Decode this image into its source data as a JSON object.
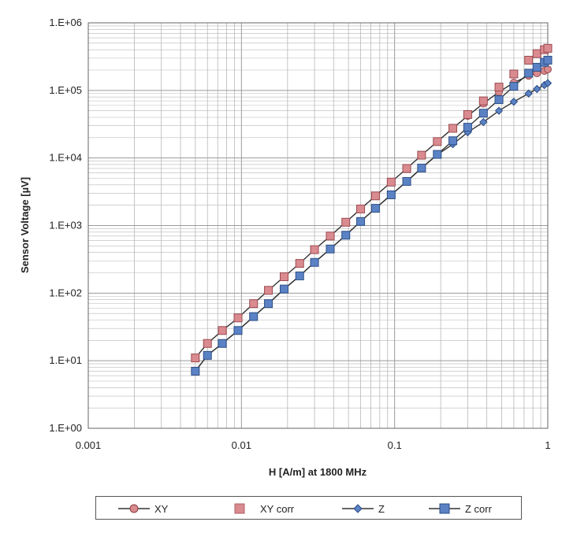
{
  "chart_data": {
    "type": "scatter",
    "xscale": "log",
    "yscale": "log",
    "xlim": [
      0.001,
      1
    ],
    "ylim": [
      1,
      1000000
    ],
    "xlabel": "H [A/m] at 1800 MHz",
    "ylabel": "Sensor Voltage [µV]",
    "xtick_labels": [
      "0.001",
      "0.01",
      "0.1",
      "1"
    ],
    "ytick_labels": [
      "1.E+00",
      "1.E+01",
      "1.E+02",
      "1.E+03",
      "1.E+04",
      "1.E+05",
      "1.E+06"
    ],
    "x": [
      0.005,
      0.006,
      0.0075,
      0.0095,
      0.012,
      0.015,
      0.019,
      0.024,
      0.03,
      0.038,
      0.048,
      0.06,
      0.075,
      0.095,
      0.12,
      0.15,
      0.19,
      0.24,
      0.3,
      0.38,
      0.48,
      0.6,
      0.75,
      0.85,
      0.95,
      1.0
    ],
    "series": [
      {
        "name": "XY",
        "marker": "circle",
        "line": true,
        "color": "#d98b8f",
        "values": [
          11,
          18,
          28,
          43,
          70,
          110,
          175,
          275,
          440,
          700,
          1120,
          1760,
          2750,
          4400,
          7000,
          11000,
          17500,
          27500,
          42000,
          64000,
          95000,
          130000,
          165000,
          180000,
          195000,
          205000
        ]
      },
      {
        "name": "XY corr",
        "marker": "square",
        "line": false,
        "color": "#d98b8f",
        "values": [
          11,
          18,
          28,
          43,
          70,
          110,
          175,
          275,
          440,
          700,
          1120,
          1760,
          2750,
          4400,
          7000,
          11000,
          17500,
          27500,
          44000,
          70000,
          112000,
          175000,
          280000,
          350000,
          400000,
          420000
        ]
      },
      {
        "name": "Z",
        "marker": "diamond",
        "line": true,
        "color": "#5b82c4",
        "values": [
          7,
          12,
          18,
          28,
          45,
          70,
          115,
          180,
          285,
          450,
          720,
          1150,
          1800,
          2850,
          4500,
          7100,
          11200,
          16000,
          24000,
          34000,
          50000,
          68000,
          90000,
          105000,
          120000,
          128000
        ]
      },
      {
        "name": "Z corr",
        "marker": "square",
        "line": true,
        "color": "#5b82c4",
        "values": [
          7,
          12,
          18,
          28,
          45,
          70,
          115,
          180,
          285,
          450,
          720,
          1150,
          1800,
          2850,
          4500,
          7100,
          11300,
          18000,
          28500,
          46000,
          73000,
          115000,
          180000,
          220000,
          260000,
          280000
        ]
      }
    ],
    "grid": true,
    "legend_position": "bottom"
  },
  "legend": {
    "xy": "XY",
    "xy_corr": "XY corr",
    "z": "Z",
    "z_corr": "Z corr"
  },
  "colors": {
    "xy": "#d98b8f",
    "z": "#5b82c4",
    "grid": "#b8b8b8",
    "major_grid": "#9a9a9a"
  }
}
